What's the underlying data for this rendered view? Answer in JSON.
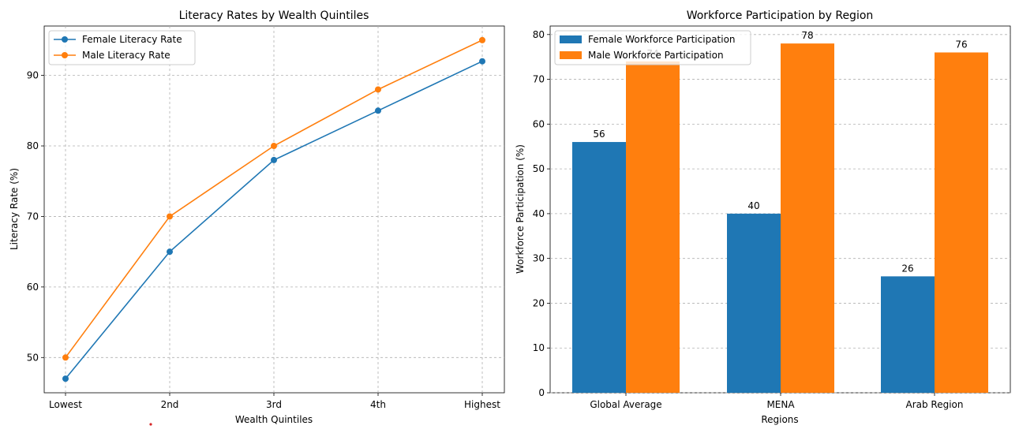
{
  "chart_data": [
    {
      "type": "line",
      "title": "Literacy Rates by Wealth Quintiles",
      "xlabel": "Wealth Quintiles",
      "ylabel": "Literacy Rate (%)",
      "categories": [
        "Lowest",
        "2nd",
        "3rd",
        "4th",
        "Highest"
      ],
      "ylim": [
        45,
        97
      ],
      "yticks": [
        50,
        60,
        70,
        80,
        90
      ],
      "grid": true,
      "legend_position": "top-left",
      "series": [
        {
          "name": "Female Literacy Rate",
          "color": "#1f77b4",
          "values": [
            47,
            65,
            78,
            85,
            92
          ]
        },
        {
          "name": "Male Literacy Rate",
          "color": "#ff7f0e",
          "values": [
            50,
            70,
            80,
            88,
            95
          ]
        }
      ]
    },
    {
      "type": "bar",
      "title": "Workforce Participation by Region",
      "xlabel": "Regions",
      "ylabel": "Workforce Participation (%)",
      "categories": [
        "Global Average",
        "MENA",
        "Arab Region"
      ],
      "ylim": [
        0,
        81.9
      ],
      "yticks": [
        0,
        10,
        20,
        30,
        40,
        50,
        60,
        70,
        80
      ],
      "grid": true,
      "legend_position": "top-left",
      "series": [
        {
          "name": "Female Workforce Participation",
          "color": "#1f77b4",
          "values": [
            56,
            40,
            26
          ]
        },
        {
          "name": "Male Workforce Participation",
          "color": "#ff7f0e",
          "values": [
            74,
            78,
            76
          ]
        }
      ]
    }
  ]
}
